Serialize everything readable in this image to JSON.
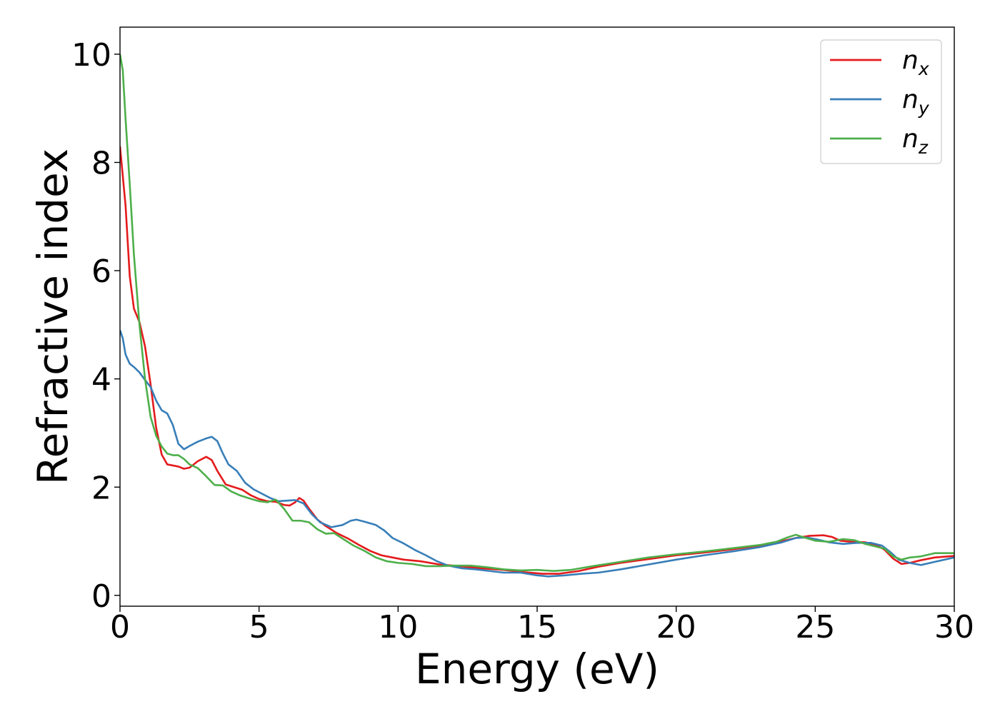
{
  "chart_data": {
    "type": "line",
    "title": "",
    "xlabel": "Energy (eV)",
    "ylabel": "Refractive index",
    "xlim": [
      0,
      30
    ],
    "ylim": [
      -0.2,
      10.5
    ],
    "xticks": [
      0,
      5,
      10,
      15,
      20,
      25,
      30
    ],
    "yticks": [
      0,
      2,
      4,
      6,
      8,
      10
    ],
    "grid": false,
    "legend_position": "top-right",
    "series": [
      {
        "name": "n_x",
        "legend_base": "n",
        "legend_sub": "x",
        "color": "#e41a1c",
        "points": [
          [
            0,
            8.3
          ],
          [
            0.2,
            7.2
          ],
          [
            0.35,
            5.9
          ],
          [
            0.5,
            5.3
          ],
          [
            0.7,
            5.05
          ],
          [
            0.9,
            4.6
          ],
          [
            1.1,
            3.9
          ],
          [
            1.3,
            3.1
          ],
          [
            1.5,
            2.6
          ],
          [
            1.7,
            2.42
          ],
          [
            1.9,
            2.4
          ],
          [
            2.1,
            2.38
          ],
          [
            2.3,
            2.34
          ],
          [
            2.5,
            2.36
          ],
          [
            2.8,
            2.48
          ],
          [
            3.1,
            2.56
          ],
          [
            3.3,
            2.5
          ],
          [
            3.5,
            2.3
          ],
          [
            3.8,
            2.05
          ],
          [
            4.1,
            2.0
          ],
          [
            4.4,
            1.95
          ],
          [
            4.7,
            1.85
          ],
          [
            5.0,
            1.78
          ],
          [
            5.3,
            1.74
          ],
          [
            5.6,
            1.73
          ],
          [
            5.9,
            1.67
          ],
          [
            6.1,
            1.66
          ],
          [
            6.3,
            1.72
          ],
          [
            6.45,
            1.8
          ],
          [
            6.6,
            1.75
          ],
          [
            6.8,
            1.6
          ],
          [
            7.1,
            1.4
          ],
          [
            7.4,
            1.28
          ],
          [
            7.8,
            1.15
          ],
          [
            8.2,
            1.05
          ],
          [
            8.6,
            0.93
          ],
          [
            9.0,
            0.82
          ],
          [
            9.4,
            0.74
          ],
          [
            9.8,
            0.7
          ],
          [
            10.2,
            0.66
          ],
          [
            10.8,
            0.63
          ],
          [
            11.5,
            0.57
          ],
          [
            12.2,
            0.54
          ],
          [
            13.0,
            0.5
          ],
          [
            13.8,
            0.47
          ],
          [
            14.5,
            0.43
          ],
          [
            15.2,
            0.4
          ],
          [
            15.8,
            0.4
          ],
          [
            16.5,
            0.45
          ],
          [
            17.2,
            0.53
          ],
          [
            18.0,
            0.6
          ],
          [
            19.0,
            0.67
          ],
          [
            20.0,
            0.74
          ],
          [
            21.0,
            0.79
          ],
          [
            22.0,
            0.85
          ],
          [
            23.0,
            0.92
          ],
          [
            23.8,
            1.0
          ],
          [
            24.3,
            1.06
          ],
          [
            24.8,
            1.1
          ],
          [
            25.3,
            1.11
          ],
          [
            25.6,
            1.08
          ],
          [
            25.9,
            1.01
          ],
          [
            26.3,
            0.99
          ],
          [
            26.8,
            0.98
          ],
          [
            27.2,
            0.93
          ],
          [
            27.5,
            0.84
          ],
          [
            27.8,
            0.68
          ],
          [
            28.1,
            0.58
          ],
          [
            28.4,
            0.6
          ],
          [
            28.8,
            0.65
          ],
          [
            29.3,
            0.7
          ],
          [
            30.0,
            0.73
          ]
        ]
      },
      {
        "name": "n_y",
        "legend_base": "n",
        "legend_sub": "y",
        "color": "#377eb8",
        "points": [
          [
            0,
            4.9
          ],
          [
            0.1,
            4.75
          ],
          [
            0.2,
            4.45
          ],
          [
            0.35,
            4.28
          ],
          [
            0.5,
            4.22
          ],
          [
            0.7,
            4.12
          ],
          [
            0.9,
            3.98
          ],
          [
            1.1,
            3.85
          ],
          [
            1.3,
            3.6
          ],
          [
            1.5,
            3.42
          ],
          [
            1.7,
            3.36
          ],
          [
            1.9,
            3.15
          ],
          [
            2.1,
            2.8
          ],
          [
            2.3,
            2.7
          ],
          [
            2.5,
            2.76
          ],
          [
            2.8,
            2.84
          ],
          [
            3.1,
            2.9
          ],
          [
            3.3,
            2.93
          ],
          [
            3.5,
            2.85
          ],
          [
            3.7,
            2.62
          ],
          [
            3.9,
            2.42
          ],
          [
            4.2,
            2.3
          ],
          [
            4.5,
            2.08
          ],
          [
            4.8,
            1.96
          ],
          [
            5.1,
            1.88
          ],
          [
            5.4,
            1.8
          ],
          [
            5.7,
            1.74
          ],
          [
            6.0,
            1.75
          ],
          [
            6.3,
            1.76
          ],
          [
            6.6,
            1.7
          ],
          [
            6.9,
            1.5
          ],
          [
            7.2,
            1.35
          ],
          [
            7.6,
            1.26
          ],
          [
            8.0,
            1.3
          ],
          [
            8.3,
            1.38
          ],
          [
            8.5,
            1.4
          ],
          [
            8.8,
            1.36
          ],
          [
            9.2,
            1.3
          ],
          [
            9.5,
            1.2
          ],
          [
            9.8,
            1.06
          ],
          [
            10.2,
            0.96
          ],
          [
            10.6,
            0.84
          ],
          [
            11.0,
            0.74
          ],
          [
            11.4,
            0.63
          ],
          [
            11.8,
            0.55
          ],
          [
            12.3,
            0.5
          ],
          [
            12.8,
            0.48
          ],
          [
            13.3,
            0.45
          ],
          [
            13.8,
            0.42
          ],
          [
            14.4,
            0.42
          ],
          [
            15.0,
            0.37
          ],
          [
            15.4,
            0.35
          ],
          [
            16.0,
            0.37
          ],
          [
            16.6,
            0.4
          ],
          [
            17.2,
            0.42
          ],
          [
            18.0,
            0.48
          ],
          [
            19.0,
            0.57
          ],
          [
            20.0,
            0.66
          ],
          [
            21.0,
            0.74
          ],
          [
            22.0,
            0.81
          ],
          [
            23.0,
            0.89
          ],
          [
            23.8,
            0.98
          ],
          [
            24.3,
            1.06
          ],
          [
            24.7,
            1.07
          ],
          [
            25.1,
            1.03
          ],
          [
            25.5,
            0.98
          ],
          [
            26.0,
            0.95
          ],
          [
            26.5,
            0.97
          ],
          [
            27.0,
            0.97
          ],
          [
            27.4,
            0.92
          ],
          [
            27.7,
            0.8
          ],
          [
            28.0,
            0.66
          ],
          [
            28.4,
            0.6
          ],
          [
            28.8,
            0.56
          ],
          [
            29.3,
            0.62
          ],
          [
            30.0,
            0.7
          ]
        ]
      },
      {
        "name": "n_z",
        "legend_base": "n",
        "legend_sub": "z",
        "color": "#4daf4a",
        "points": [
          [
            0,
            10.0
          ],
          [
            0.1,
            9.7
          ],
          [
            0.2,
            8.8
          ],
          [
            0.35,
            7.6
          ],
          [
            0.5,
            6.3
          ],
          [
            0.7,
            5.0
          ],
          [
            0.9,
            4.0
          ],
          [
            1.1,
            3.3
          ],
          [
            1.3,
            2.95
          ],
          [
            1.5,
            2.75
          ],
          [
            1.7,
            2.62
          ],
          [
            1.9,
            2.59
          ],
          [
            2.1,
            2.59
          ],
          [
            2.3,
            2.52
          ],
          [
            2.5,
            2.42
          ],
          [
            2.8,
            2.35
          ],
          [
            3.1,
            2.2
          ],
          [
            3.4,
            2.04
          ],
          [
            3.7,
            2.03
          ],
          [
            4.0,
            1.92
          ],
          [
            4.3,
            1.85
          ],
          [
            4.6,
            1.8
          ],
          [
            5.0,
            1.74
          ],
          [
            5.3,
            1.72
          ],
          [
            5.6,
            1.77
          ],
          [
            5.9,
            1.6
          ],
          [
            6.2,
            1.38
          ],
          [
            6.5,
            1.38
          ],
          [
            6.8,
            1.35
          ],
          [
            7.1,
            1.22
          ],
          [
            7.4,
            1.14
          ],
          [
            7.7,
            1.15
          ],
          [
            8.0,
            1.05
          ],
          [
            8.4,
            0.92
          ],
          [
            8.8,
            0.82
          ],
          [
            9.2,
            0.7
          ],
          [
            9.6,
            0.63
          ],
          [
            10.0,
            0.6
          ],
          [
            10.5,
            0.58
          ],
          [
            11.0,
            0.54
          ],
          [
            11.5,
            0.54
          ],
          [
            12.0,
            0.55
          ],
          [
            12.6,
            0.55
          ],
          [
            13.2,
            0.52
          ],
          [
            13.8,
            0.48
          ],
          [
            14.4,
            0.46
          ],
          [
            15.0,
            0.47
          ],
          [
            15.6,
            0.45
          ],
          [
            16.2,
            0.47
          ],
          [
            17.0,
            0.54
          ],
          [
            18.0,
            0.62
          ],
          [
            19.0,
            0.7
          ],
          [
            20.0,
            0.76
          ],
          [
            21.0,
            0.81
          ],
          [
            22.0,
            0.87
          ],
          [
            23.0,
            0.93
          ],
          [
            23.6,
            0.99
          ],
          [
            24.0,
            1.07
          ],
          [
            24.3,
            1.12
          ],
          [
            24.6,
            1.07
          ],
          [
            25.0,
            1.01
          ],
          [
            25.5,
            0.99
          ],
          [
            26.0,
            1.04
          ],
          [
            26.4,
            1.02
          ],
          [
            26.8,
            0.95
          ],
          [
            27.2,
            0.9
          ],
          [
            27.5,
            0.86
          ],
          [
            27.8,
            0.72
          ],
          [
            28.1,
            0.66
          ],
          [
            28.4,
            0.7
          ],
          [
            28.8,
            0.72
          ],
          [
            29.3,
            0.78
          ],
          [
            30.0,
            0.78
          ]
        ]
      }
    ]
  }
}
